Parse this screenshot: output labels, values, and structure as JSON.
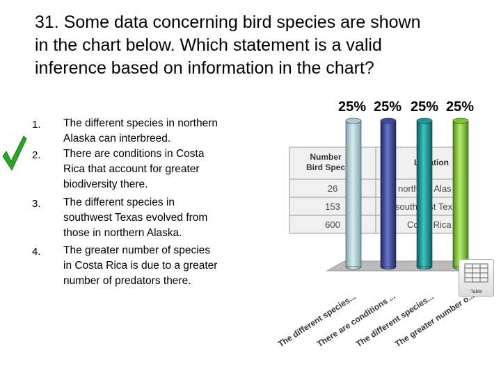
{
  "question": {
    "line1": "31. Some data concerning bird species are shown",
    "line2": "in the chart below. Which statement is a valid",
    "line3": "inference based on information in the chart?"
  },
  "answers": [
    {
      "number": "1.",
      "lines": [
        "The different species in northern",
        "Alaska can interbreed."
      ]
    },
    {
      "number": "2.",
      "lines": [
        "There are conditions in Costa",
        "Rica that account for greater",
        "biodiversity there."
      ],
      "correct": true
    },
    {
      "number": "3.",
      "lines": [
        "The different species in",
        "southwest Texas evolved from",
        "those in northern Alaska."
      ]
    },
    {
      "number": "4.",
      "lines": [
        "The greater number of species",
        "in Costa Rica is due to a greater",
        "number of predators there."
      ]
    }
  ],
  "data_table": {
    "headers": [
      "Number of Bird Species",
      "Location"
    ],
    "header_visible": [
      "Number",
      "Bird Spec",
      "Location"
    ],
    "rows": [
      {
        "number": "26",
        "location": "northern Alas"
      },
      {
        "number": "153",
        "location": "southwest Tex"
      },
      {
        "number": "600",
        "location": "Costa Rica"
      }
    ]
  },
  "table_icon_label": "Table",
  "chart_data": {
    "type": "bar",
    "categories": [
      "The different species...",
      "There are conditions ...",
      "The different species...",
      "The greater number o..."
    ],
    "values": [
      25,
      25,
      25,
      25
    ],
    "value_labels": [
      "25%",
      "25%",
      "25%",
      "25%"
    ],
    "colors": [
      "#a9cdd2",
      "#3e4a9a",
      "#1a9a9a",
      "#7fc431"
    ]
  }
}
